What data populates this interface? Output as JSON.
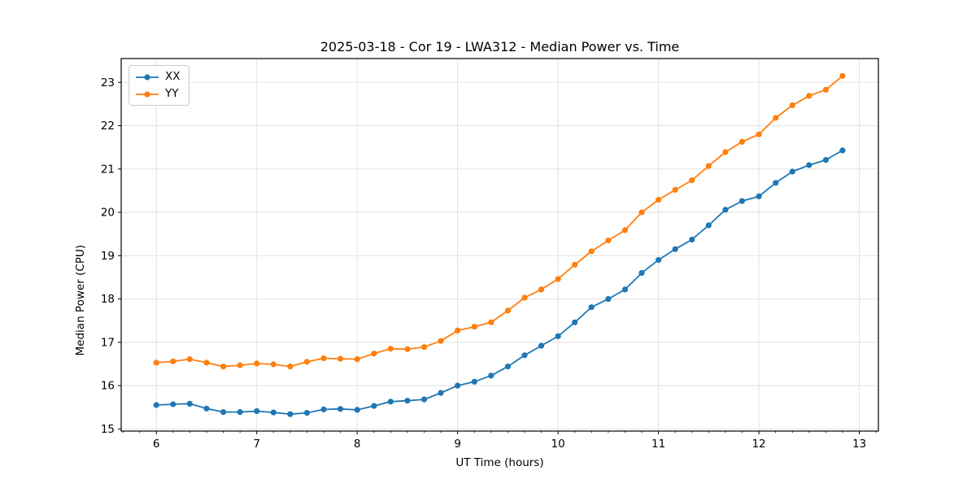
{
  "figure": {
    "kind": "matplotlib-style line chart on white canvas"
  },
  "chart_data": {
    "type": "line",
    "title": "2025-03-18 - Cor 19 - LWA312 - Median Power vs. Time",
    "xlabel": "UT Time (hours)",
    "ylabel": "Median Power (CPU)",
    "grid": true,
    "legend_position": "upper left",
    "marker": "circle",
    "xlim": [
      5.65,
      13.19
    ],
    "ylim": [
      14.95,
      23.55
    ],
    "xticks": [
      6,
      7,
      8,
      9,
      10,
      11,
      12,
      13
    ],
    "yticks": [
      15,
      16,
      17,
      18,
      19,
      20,
      21,
      22,
      23
    ],
    "x_minor_step_hours": 0.16667,
    "x": [
      6.0,
      6.167,
      6.333,
      6.5,
      6.667,
      6.833,
      7.0,
      7.167,
      7.333,
      7.5,
      7.667,
      7.833,
      8.0,
      8.167,
      8.333,
      8.5,
      8.667,
      8.833,
      9.0,
      9.167,
      9.333,
      9.5,
      9.667,
      9.833,
      10.0,
      10.167,
      10.333,
      10.5,
      10.667,
      10.833,
      11.0,
      11.167,
      11.333,
      11.5,
      11.667,
      11.833,
      12.0,
      12.167,
      12.333,
      12.5,
      12.667,
      12.833
    ],
    "series": [
      {
        "name": "XX",
        "color": "#1f77b4",
        "values": [
          15.55,
          15.57,
          15.58,
          15.47,
          15.39,
          15.39,
          15.41,
          15.38,
          15.34,
          15.37,
          15.45,
          15.46,
          15.44,
          15.53,
          15.63,
          15.65,
          15.68,
          15.83,
          16.0,
          16.09,
          16.23,
          16.44,
          16.7,
          16.92,
          17.14,
          17.46,
          17.81,
          18.0,
          18.22,
          18.6,
          18.9,
          19.15,
          19.37,
          19.7,
          20.06,
          20.26,
          20.37,
          20.68,
          20.94,
          21.09,
          21.21,
          21.43
        ]
      },
      {
        "name": "YY",
        "color": "#ff7f0e",
        "values": [
          16.53,
          16.56,
          16.61,
          16.53,
          16.44,
          16.47,
          16.51,
          16.49,
          16.44,
          16.55,
          16.63,
          16.62,
          16.61,
          16.74,
          16.85,
          16.84,
          16.89,
          17.03,
          17.27,
          17.36,
          17.46,
          17.73,
          18.03,
          18.22,
          18.46,
          18.79,
          19.1,
          19.35,
          19.59,
          20.0,
          20.29,
          20.52,
          20.74,
          21.07,
          21.39,
          21.63,
          21.8,
          22.18,
          22.47,
          22.69,
          22.83,
          23.15
        ]
      }
    ],
    "style": {
      "grid_color": "#e2e2e2",
      "spine_color": "#000000",
      "background": "#ffffff",
      "line_width": 1.8,
      "marker_radius": 3.6
    }
  }
}
